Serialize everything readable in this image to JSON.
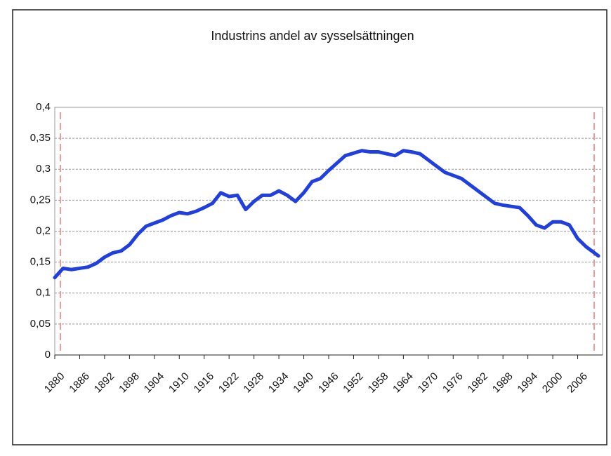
{
  "chart_data": {
    "type": "line",
    "title": "Industrins andel av sysselsättningen",
    "series": [
      {
        "name": null,
        "color": "#1f3fe0",
        "x": [
          1880,
          1882,
          1884,
          1886,
          1888,
          1890,
          1892,
          1894,
          1896,
          1898,
          1900,
          1902,
          1904,
          1906,
          1908,
          1910,
          1912,
          1914,
          1916,
          1918,
          1920,
          1922,
          1924,
          1926,
          1928,
          1930,
          1932,
          1934,
          1936,
          1938,
          1940,
          1942,
          1944,
          1946,
          1948,
          1950,
          1952,
          1954,
          1956,
          1958,
          1960,
          1962,
          1964,
          1966,
          1968,
          1970,
          1972,
          1974,
          1976,
          1978,
          1980,
          1982,
          1984,
          1986,
          1988,
          1990,
          1992,
          1994,
          1996,
          1998,
          2000,
          2002,
          2004,
          2006,
          2008,
          2011
        ],
        "values": [
          0.125,
          0.14,
          0.138,
          0.14,
          0.142,
          0.148,
          0.158,
          0.165,
          0.168,
          0.178,
          0.195,
          0.208,
          0.213,
          0.218,
          0.225,
          0.23,
          0.228,
          0.232,
          0.238,
          0.245,
          0.262,
          0.256,
          0.258,
          0.235,
          0.248,
          0.258,
          0.258,
          0.265,
          0.258,
          0.248,
          0.262,
          0.28,
          0.285,
          0.298,
          0.31,
          0.322,
          0.326,
          0.33,
          0.328,
          0.328,
          0.325,
          0.322,
          0.33,
          0.328,
          0.325,
          0.315,
          0.305,
          0.295,
          0.29,
          0.285,
          0.275,
          0.265,
          0.255,
          0.245,
          0.242,
          0.24,
          0.238,
          0.225,
          0.21,
          0.205,
          0.215,
          0.215,
          0.21,
          0.188,
          0.175,
          0.16
        ]
      }
    ],
    "xlim": [
      1880,
      2012
    ],
    "xticks": [
      1880,
      1886,
      1892,
      1898,
      1904,
      1910,
      1916,
      1922,
      1928,
      1934,
      1940,
      1946,
      1952,
      1958,
      1964,
      1970,
      1976,
      1982,
      1988,
      1994,
      2000,
      2006
    ],
    "ylim": [
      0,
      0.4
    ],
    "yticks": [
      0,
      {
        "value": 0.05,
        "label": "0,05"
      },
      {
        "value": 0.1,
        "label": "0,1"
      },
      {
        "value": 0.15,
        "label": "0,15"
      },
      {
        "value": 0.2,
        "label": "0,2"
      },
      {
        "value": 0.25,
        "label": "0,25"
      },
      {
        "value": 0.3,
        "label": "0,3"
      },
      {
        "value": 0.35,
        "label": "0,35"
      },
      {
        "value": 0.4,
        "label": "0,4"
      }
    ],
    "grid": true
  }
}
